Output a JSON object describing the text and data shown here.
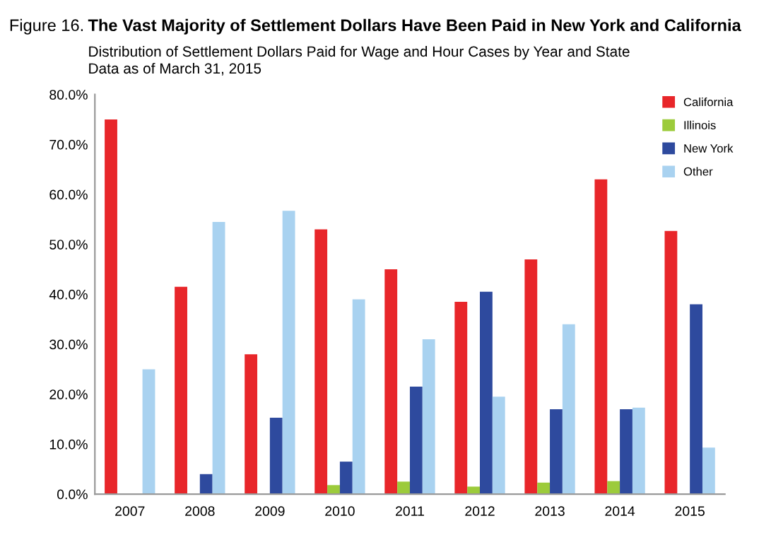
{
  "chart_data": {
    "type": "bar",
    "annotations": [
      "Figure 16."
    ],
    "title": "The Vast Majority of Settlement Dollars Have Been Paid in New York and California",
    "subtitle": "Distribution of Settlement Dollars Paid for Wage and Hour Cases by Year and State\nData as of March 31, 2015",
    "categories": [
      "2007",
      "2008",
      "2009",
      "2010",
      "2011",
      "2012",
      "2013",
      "2014",
      "2015"
    ],
    "series": [
      {
        "name": "California",
        "color": "#e8262a",
        "values": [
          75,
          41.5,
          28,
          53,
          45,
          38.5,
          47,
          63,
          52.7
        ]
      },
      {
        "name": "Illinois",
        "color": "#9ccb3b",
        "values": [
          0,
          0,
          0,
          1.8,
          2.5,
          1.5,
          2.3,
          2.6,
          0
        ]
      },
      {
        "name": "New York",
        "color": "#2e4a9e",
        "values": [
          0,
          4,
          15.3,
          6.5,
          21.5,
          40.5,
          17,
          17,
          38
        ]
      },
      {
        "name": "Other",
        "color": "#a9d2f0",
        "values": [
          25,
          54.5,
          56.7,
          39,
          31,
          19.5,
          34,
          17.3,
          9.3
        ]
      }
    ],
    "ylim": [
      0,
      80
    ],
    "yticks": [
      {
        "value": 0,
        "label": "0.0%"
      },
      {
        "value": 10,
        "label": "10.0%"
      },
      {
        "value": 20,
        "label": "20.0%"
      },
      {
        "value": 30,
        "label": "30.0%"
      },
      {
        "value": 40,
        "label": "40.0%"
      },
      {
        "value": 50,
        "label": "50.0%"
      },
      {
        "value": 60,
        "label": "60.0%"
      },
      {
        "value": 70,
        "label": "70.0%"
      },
      {
        "value": 80,
        "label": "80.0%"
      }
    ],
    "grid": false,
    "legend": "top right"
  }
}
